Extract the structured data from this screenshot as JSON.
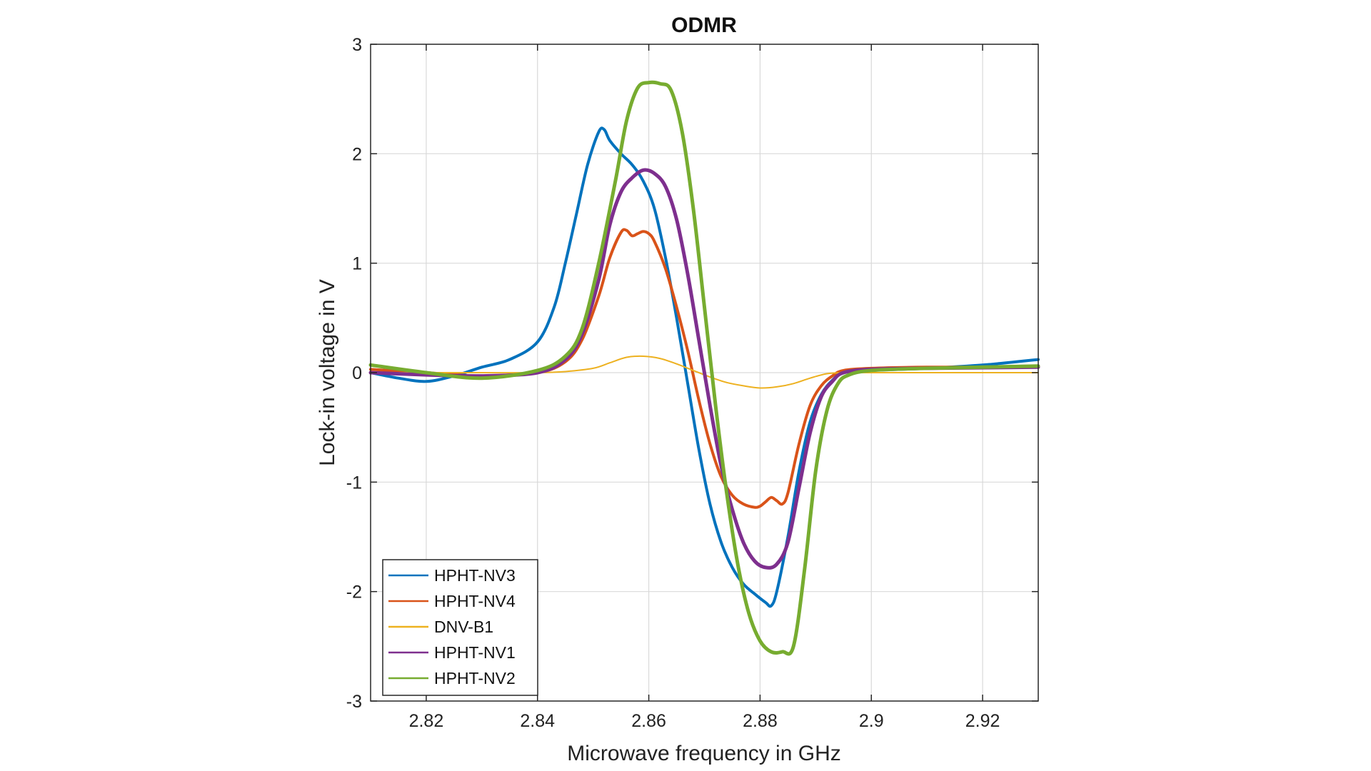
{
  "chart_data": {
    "type": "line",
    "title": "ODMR",
    "xlabel": "Microwave frequency in GHz",
    "ylabel": "Lock-in voltage in V",
    "xlim": [
      2.81,
      2.93
    ],
    "ylim": [
      -3,
      3
    ],
    "xticks": [
      2.82,
      2.84,
      2.86,
      2.88,
      2.9,
      2.92
    ],
    "xtick_labels": [
      "2.82",
      "2.84",
      "2.86",
      "2.88",
      "2.9",
      "2.92"
    ],
    "yticks": [
      -3,
      -2,
      -1,
      0,
      1,
      2,
      3
    ],
    "ytick_labels": [
      "-3",
      "-2",
      "-1",
      "0",
      "1",
      "2",
      "3"
    ],
    "grid": true,
    "legend_position": "bottom-left",
    "series": [
      {
        "name": "HPHT-NV3",
        "color": "#0072BD",
        "line_width": 4,
        "x": [
          2.81,
          2.815,
          2.82,
          2.825,
          2.83,
          2.835,
          2.84,
          2.843,
          2.845,
          2.847,
          2.849,
          2.851,
          2.852,
          2.853,
          2.855,
          2.857,
          2.859,
          2.861,
          2.863,
          2.865,
          2.867,
          2.869,
          2.871,
          2.873,
          2.875,
          2.877,
          2.879,
          2.881,
          2.882,
          2.883,
          2.885,
          2.887,
          2.889,
          2.891,
          2.893,
          2.895,
          2.9,
          2.91,
          2.92,
          2.93
        ],
        "y": [
          0.0,
          -0.05,
          -0.08,
          -0.03,
          0.05,
          0.12,
          0.28,
          0.6,
          1.0,
          1.45,
          1.9,
          2.2,
          2.22,
          2.12,
          2.0,
          1.9,
          1.75,
          1.5,
          1.05,
          0.5,
          -0.1,
          -0.7,
          -1.2,
          -1.55,
          -1.78,
          -1.93,
          -2.02,
          -2.1,
          -2.13,
          -2.0,
          -1.5,
          -0.9,
          -0.45,
          -0.2,
          -0.07,
          0.0,
          0.02,
          0.04,
          0.07,
          0.12
        ]
      },
      {
        "name": "HPHT-NV4",
        "color": "#D95319",
        "line_width": 4,
        "x": [
          2.81,
          2.82,
          2.83,
          2.84,
          2.845,
          2.848,
          2.851,
          2.853,
          2.855,
          2.856,
          2.857,
          2.858,
          2.859,
          2.86,
          2.861,
          2.863,
          2.865,
          2.867,
          2.869,
          2.871,
          2.873,
          2.875,
          2.877,
          2.879,
          2.88,
          2.881,
          2.882,
          2.883,
          2.884,
          2.885,
          2.887,
          2.889,
          2.891,
          2.893,
          2.895,
          2.9,
          2.91,
          2.93
        ],
        "y": [
          0.03,
          0.0,
          -0.03,
          0.0,
          0.1,
          0.3,
          0.7,
          1.05,
          1.28,
          1.3,
          1.25,
          1.27,
          1.29,
          1.27,
          1.2,
          0.95,
          0.6,
          0.2,
          -0.25,
          -0.65,
          -0.95,
          -1.12,
          -1.2,
          -1.23,
          -1.22,
          -1.18,
          -1.14,
          -1.17,
          -1.2,
          -1.1,
          -0.65,
          -0.3,
          -0.12,
          -0.03,
          0.02,
          0.04,
          0.05,
          0.05
        ]
      },
      {
        "name": "DNV-B1",
        "color": "#EDB120",
        "line_width": 2,
        "x": [
          2.81,
          2.82,
          2.83,
          2.84,
          2.845,
          2.85,
          2.853,
          2.856,
          2.859,
          2.862,
          2.865,
          2.868,
          2.871,
          2.874,
          2.877,
          2.88,
          2.883,
          2.886,
          2.889,
          2.892,
          2.895,
          2.9,
          2.91,
          2.93
        ],
        "y": [
          0.0,
          0.0,
          0.0,
          0.0,
          0.01,
          0.04,
          0.09,
          0.14,
          0.15,
          0.13,
          0.08,
          0.02,
          -0.04,
          -0.09,
          -0.12,
          -0.14,
          -0.13,
          -0.1,
          -0.05,
          -0.01,
          0.0,
          0.0,
          0.0,
          0.0
        ]
      },
      {
        "name": "HPHT-NV1",
        "color": "#7E2F8E",
        "line_width": 5,
        "x": [
          2.81,
          2.82,
          2.83,
          2.84,
          2.845,
          2.848,
          2.851,
          2.853,
          2.855,
          2.857,
          2.859,
          2.861,
          2.863,
          2.865,
          2.867,
          2.869,
          2.871,
          2.873,
          2.875,
          2.877,
          2.879,
          2.881,
          2.883,
          2.885,
          2.887,
          2.889,
          2.891,
          2.893,
          2.895,
          2.9,
          2.91,
          2.93
        ],
        "y": [
          0.0,
          -0.02,
          -0.03,
          0.0,
          0.12,
          0.35,
          0.85,
          1.35,
          1.65,
          1.78,
          1.85,
          1.82,
          1.7,
          1.4,
          0.9,
          0.3,
          -0.3,
          -0.85,
          -1.25,
          -1.55,
          -1.72,
          -1.78,
          -1.75,
          -1.55,
          -1.05,
          -0.55,
          -0.22,
          -0.08,
          0.0,
          0.03,
          0.04,
          0.05
        ]
      },
      {
        "name": "HPHT-NV2",
        "color": "#77AC30",
        "line_width": 5,
        "x": [
          2.81,
          2.82,
          2.83,
          2.84,
          2.845,
          2.848,
          2.851,
          2.854,
          2.856,
          2.858,
          2.86,
          2.862,
          2.864,
          2.866,
          2.868,
          2.87,
          2.872,
          2.874,
          2.876,
          2.878,
          2.88,
          2.882,
          2.884,
          2.886,
          2.888,
          2.89,
          2.892,
          2.894,
          2.896,
          2.9,
          2.91,
          2.93
        ],
        "y": [
          0.07,
          0.0,
          -0.05,
          0.02,
          0.15,
          0.4,
          1.0,
          1.75,
          2.3,
          2.6,
          2.65,
          2.64,
          2.58,
          2.2,
          1.5,
          0.6,
          -0.3,
          -1.1,
          -1.75,
          -2.2,
          -2.45,
          -2.55,
          -2.55,
          -2.5,
          -1.8,
          -0.9,
          -0.35,
          -0.1,
          -0.02,
          0.02,
          0.04,
          0.06
        ]
      }
    ]
  }
}
